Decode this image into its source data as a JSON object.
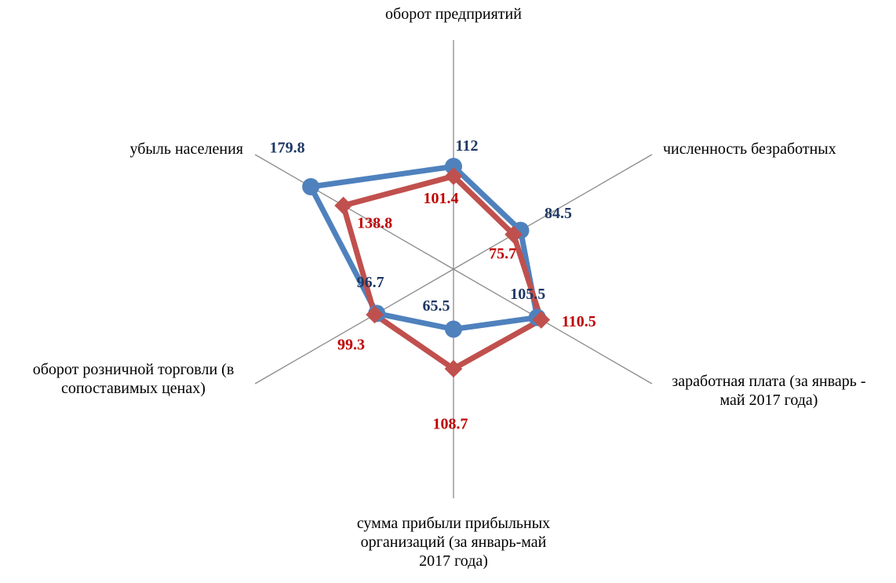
{
  "chart_data": {
    "type": "radar",
    "categories": [
      "оборот предприятий",
      "численность безработных",
      "заработная плата (за январь - май 2017 года)",
      "сумма прибыли прибыльных организаций (за январь-май 2017 года)",
      "оборот розничной торговли (в сопоставимых ценах)",
      "убыль населения"
    ],
    "rlim": [
      0,
      250
    ],
    "series": [
      {
        "color": "#4f81bd",
        "label_color": "#1f3864",
        "marker": "circle",
        "values": [
          112,
          84.5,
          105.5,
          65.5,
          96.7,
          179.8
        ]
      },
      {
        "color": "#c0504d",
        "label_color": "#c00000",
        "marker": "diamond",
        "values": [
          101.4,
          75.7,
          110.5,
          108.7,
          99.3,
          138.8
        ]
      }
    ]
  }
}
